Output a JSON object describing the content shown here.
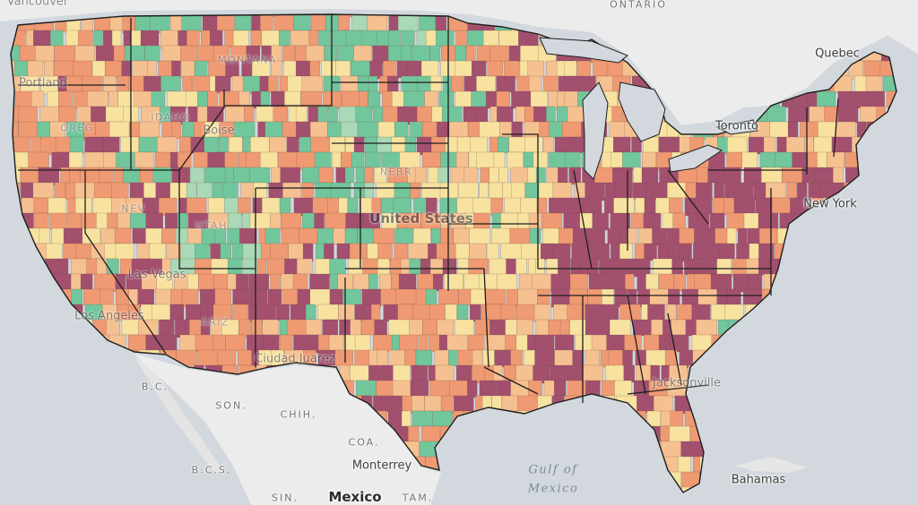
{
  "map": {
    "colors": {
      "water": "#d2d8dd",
      "land": "#ececec",
      "purple": "#a3506f",
      "orange": "#ef9a72",
      "lightorange": "#f6c190",
      "yellow": "#f7e2a0",
      "green": "#72c69c",
      "lightgreen": "#a9d9b6",
      "county_line": "#6b4a3c",
      "state_line": "#1e1e1e"
    },
    "labels": {
      "vancouver": "Vancouver",
      "ontario": "ONTARIO",
      "quebec": "Quebec",
      "portland": "Portland",
      "montana": "MONTANA",
      "idaho": "IDAHO",
      "oregon": "OREG",
      "boise": "Boise",
      "toronto": "Toronto",
      "nebraska": "NEBR",
      "nevada": "NEV",
      "utah": "UTAH",
      "united_states": "United States",
      "new_york": "New York",
      "las_vegas": "Las Vegas",
      "los_angeles": "Los Angeles",
      "arizona": "ARIZ",
      "ciudad_juarez": "Ciudad Juarez",
      "baja_california": "B.C.",
      "sonora": "SON.",
      "chihuahua": "CHIH.",
      "coahuila": "COA.",
      "jacksonville": "Jacksonville",
      "baja_california_sur": "B.C.S.",
      "monterrey": "Monterrey",
      "gulf_line1": "Gulf of",
      "gulf_line2": "Mexico",
      "bahamas": "Bahamas",
      "sinaloa": "SIN.",
      "mexico": "Mexico",
      "tamaulipas": "TAM."
    }
  }
}
